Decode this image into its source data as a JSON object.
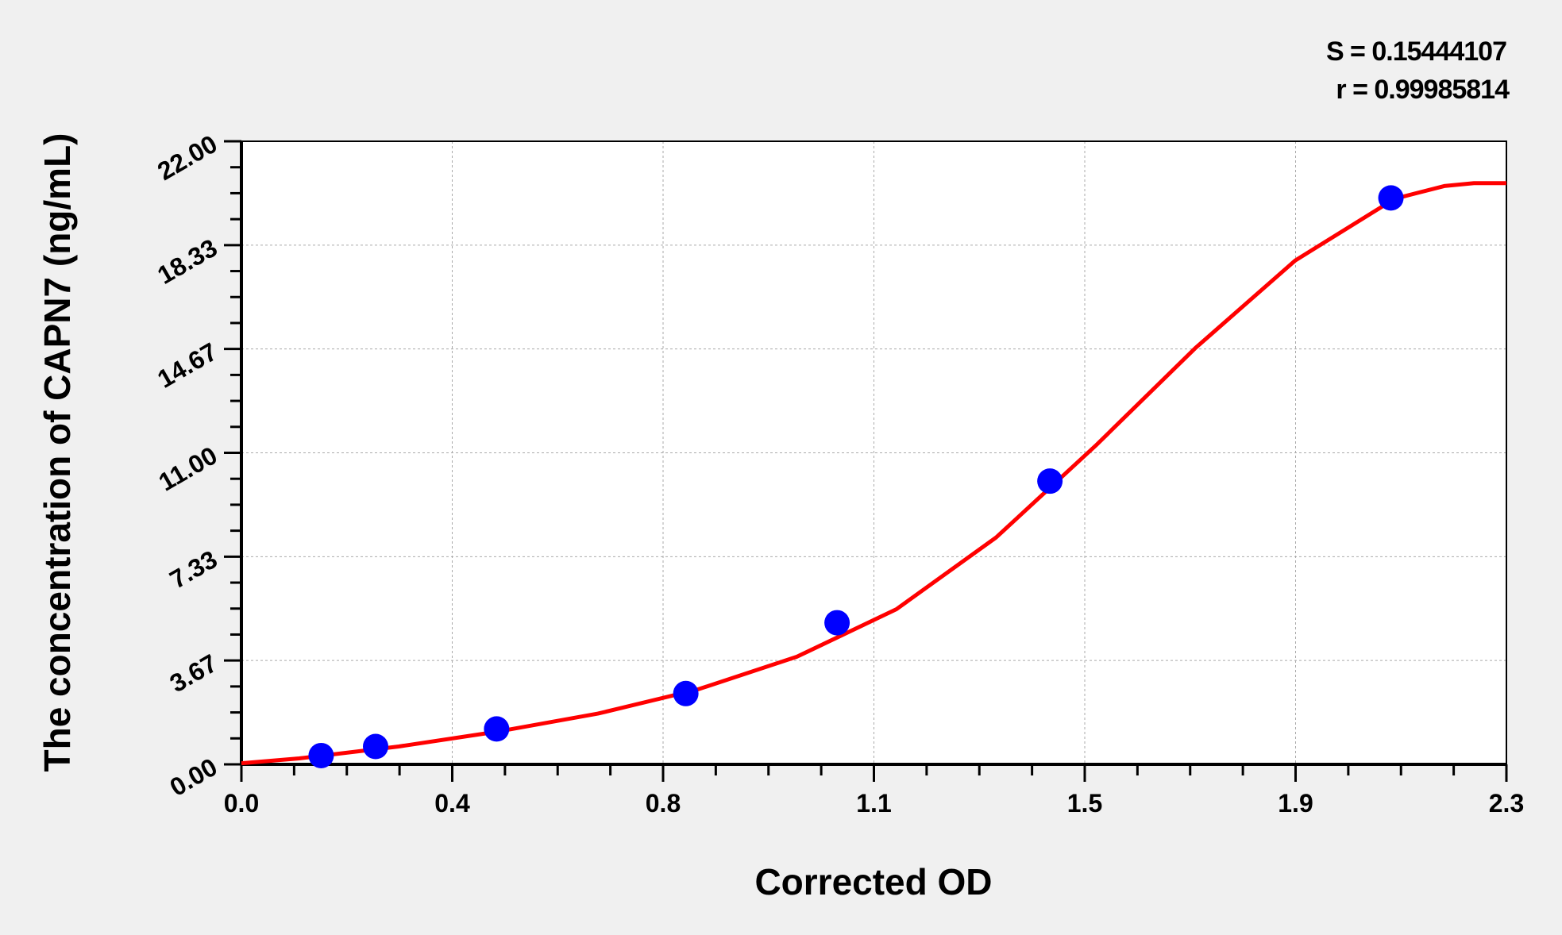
{
  "chart_data": {
    "type": "scatter",
    "xlabel": "Corrected OD",
    "ylabel": "The concentration of CAPN7 (ng/mL)",
    "xlim": [
      0,
      2.3
    ],
    "ylim": [
      0,
      22
    ],
    "x_tick_labels": [
      "0.0",
      "0.4",
      "0.8",
      "1.1",
      "1.5",
      "1.9",
      "2.3"
    ],
    "y_tick_labels": [
      "0.00",
      "3.67",
      "7.33",
      "11.00",
      "14.67",
      "18.33",
      "22.00"
    ],
    "grid": true,
    "annotations": [
      "S = 0.15444107",
      "r = 0.99985814"
    ],
    "points": {
      "x": [
        0.145,
        0.244,
        0.464,
        0.808,
        1.083,
        1.47,
        2.09
      ],
      "y": [
        0.31,
        0.63,
        1.25,
        2.5,
        5,
        10,
        20
      ],
      "color": "#0000ff"
    },
    "fit_curve": {
      "x": [
        0,
        0.105,
        0.286,
        0.467,
        0.648,
        0.829,
        1.01,
        1.191,
        1.372,
        1.553,
        1.734,
        1.916,
        2.097,
        2.187,
        2.241,
        2.3
      ],
      "y": [
        0.04,
        0.21,
        0.63,
        1.16,
        1.79,
        2.64,
        3.8,
        5.48,
        8.01,
        11.25,
        14.69,
        17.79,
        19.97,
        20.42,
        20.52,
        20.52
      ],
      "color": "#ff0000"
    }
  }
}
